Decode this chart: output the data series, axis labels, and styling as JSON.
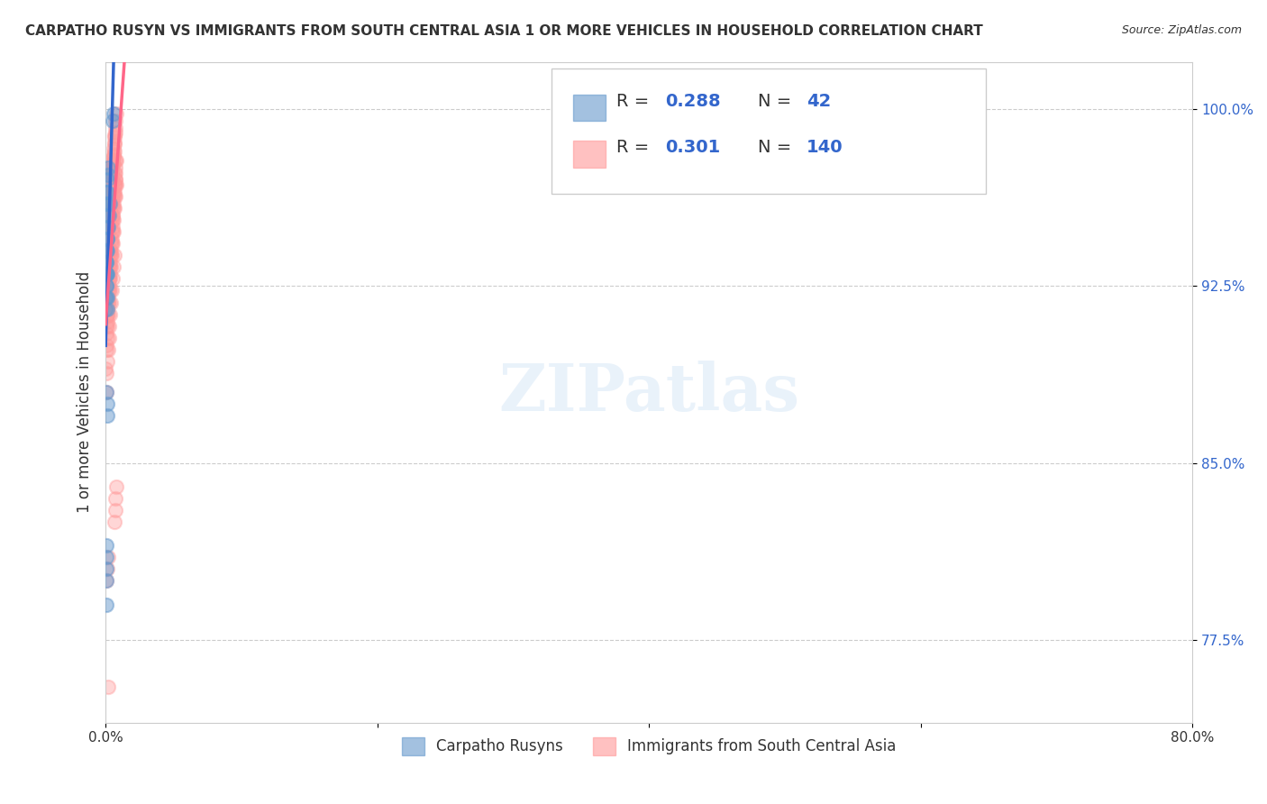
{
  "title": "CARPATHO RUSYN VS IMMIGRANTS FROM SOUTH CENTRAL ASIA 1 OR MORE VEHICLES IN HOUSEHOLD CORRELATION CHART",
  "source": "Source: ZipAtlas.com",
  "xlabel": "",
  "ylabel": "1 or more Vehicles in Household",
  "xlim": [
    0.0,
    80.0
  ],
  "ylim": [
    74.0,
    102.0
  ],
  "xticks": [
    0.0,
    20.0,
    40.0,
    60.0,
    80.0
  ],
  "xticklabels": [
    "0.0%",
    "",
    "",
    "",
    "80.0%"
  ],
  "ytick_values": [
    77.5,
    85.0,
    92.5,
    100.0
  ],
  "ytick_labels": [
    "77.5%",
    "85.0%",
    "92.5%",
    "100.0%"
  ],
  "blue_R": 0.288,
  "blue_N": 42,
  "pink_R": 0.301,
  "pink_N": 140,
  "blue_color": "#6699CC",
  "pink_color": "#FF9999",
  "blue_line_color": "#3366CC",
  "pink_line_color": "#FF6688",
  "legend_label_blue": "Carpatho Rusyns",
  "legend_label_pink": "Immigrants from South Central Asia",
  "blue_scatter_x": [
    0.1,
    0.15,
    0.2,
    0.05,
    0.08,
    0.12,
    0.18,
    0.22,
    0.3,
    0.05,
    0.07,
    0.09,
    0.11,
    0.13,
    0.08,
    0.06,
    0.04,
    0.03,
    0.02,
    0.1,
    0.15,
    0.1,
    0.07,
    0.09,
    0.05,
    0.03,
    0.04,
    0.06,
    0.08,
    0.55,
    0.6,
    0.12,
    0.14,
    0.1,
    0.2,
    0.08,
    0.06,
    0.04,
    0.05,
    0.03,
    0.02,
    0.01
  ],
  "blue_scatter_y": [
    96.5,
    97.0,
    97.5,
    96.0,
    96.5,
    96.0,
    97.2,
    95.5,
    96.0,
    93.5,
    94.0,
    94.5,
    93.0,
    94.0,
    93.5,
    93.0,
    92.5,
    93.0,
    93.5,
    91.5,
    92.0,
    87.0,
    88.0,
    87.5,
    81.0,
    80.5,
    80.0,
    81.5,
    79.0,
    99.5,
    99.8,
    95.0,
    95.5,
    94.5,
    95.0,
    94.0,
    93.0,
    92.5,
    92.0,
    93.0,
    92.0,
    91.5
  ],
  "pink_scatter_x": [
    0.05,
    0.08,
    0.12,
    0.15,
    0.18,
    0.2,
    0.25,
    0.3,
    0.35,
    0.4,
    0.45,
    0.5,
    0.55,
    0.6,
    0.65,
    0.7,
    0.75,
    0.03,
    0.06,
    0.09,
    0.11,
    0.14,
    0.16,
    0.19,
    0.22,
    0.26,
    0.29,
    0.32,
    0.36,
    0.38,
    0.42,
    0.44,
    0.48,
    0.52,
    0.56,
    0.58,
    0.62,
    0.66,
    0.68,
    0.72,
    0.02,
    0.04,
    0.07,
    0.1,
    0.13,
    0.17,
    0.21,
    0.24,
    0.27,
    0.31,
    0.34,
    0.37,
    0.41,
    0.43,
    0.47,
    0.51,
    0.53,
    0.57,
    0.61,
    0.63,
    0.67,
    0.71,
    0.73,
    0.77,
    0.05,
    0.1,
    0.15,
    0.2,
    0.25,
    0.3,
    0.35,
    0.4,
    0.45,
    0.5,
    0.55,
    0.6,
    0.65,
    0.7,
    0.08,
    0.12,
    0.18,
    0.22,
    0.28,
    0.33,
    0.38,
    0.43,
    0.48,
    0.53,
    0.58,
    0.63,
    0.68,
    0.73,
    0.04,
    0.07,
    0.11,
    0.16,
    0.23,
    0.27,
    0.32,
    0.39,
    0.44,
    0.49,
    0.54,
    0.59,
    0.64,
    0.69,
    0.74,
    0.79,
    0.02,
    0.06,
    0.1,
    0.14,
    0.19,
    0.24,
    0.29,
    0.34,
    0.39,
    0.46,
    0.5,
    0.56,
    0.61,
    0.67,
    0.72,
    0.76,
    0.03,
    0.08,
    0.13,
    0.17,
    0.22,
    0.28,
    0.35,
    0.41,
    0.47,
    0.52,
    0.57,
    0.62,
    0.66,
    0.71,
    0.75,
    0.78,
    0.05,
    0.09,
    0.16,
    0.2
  ],
  "pink_scatter_y": [
    93.5,
    94.0,
    93.0,
    94.5,
    95.0,
    94.8,
    95.2,
    95.5,
    94.0,
    95.8,
    96.0,
    96.2,
    95.5,
    96.5,
    96.8,
    97.0,
    97.5,
    93.0,
    92.5,
    93.5,
    94.2,
    94.8,
    95.0,
    95.3,
    95.6,
    95.9,
    96.2,
    96.4,
    96.6,
    96.8,
    97.0,
    97.2,
    97.4,
    97.6,
    97.8,
    98.0,
    98.2,
    98.5,
    98.8,
    99.0,
    92.0,
    92.8,
    93.2,
    93.8,
    94.5,
    95.1,
    95.4,
    95.7,
    96.0,
    96.3,
    96.6,
    96.9,
    97.1,
    97.3,
    97.5,
    97.7,
    97.9,
    98.1,
    98.3,
    98.6,
    98.9,
    99.2,
    99.5,
    99.8,
    90.5,
    91.0,
    91.5,
    92.0,
    92.5,
    93.0,
    93.5,
    94.0,
    94.5,
    95.0,
    95.5,
    96.0,
    96.5,
    97.0,
    91.2,
    91.8,
    92.3,
    92.8,
    93.3,
    93.8,
    94.3,
    94.8,
    95.3,
    95.8,
    96.3,
    96.8,
    97.3,
    97.8,
    90.0,
    90.8,
    91.3,
    91.8,
    92.3,
    92.8,
    93.3,
    93.8,
    94.3,
    94.8,
    95.3,
    95.8,
    96.3,
    96.8,
    97.3,
    97.8,
    89.0,
    89.8,
    90.3,
    90.8,
    91.3,
    91.8,
    92.3,
    92.8,
    93.3,
    93.8,
    94.3,
    94.8,
    95.3,
    95.8,
    96.3,
    96.8,
    88.0,
    88.8,
    89.3,
    89.8,
    90.3,
    90.8,
    91.3,
    91.8,
    92.3,
    92.8,
    93.3,
    93.8,
    82.5,
    83.0,
    83.5,
    84.0,
    80.0,
    80.5,
    81.0,
    75.5
  ],
  "watermark": "ZIPatlas",
  "background_color": "#FFFFFF",
  "grid_color": "#CCCCCC",
  "title_color": "#333333",
  "axis_label_color": "#333333"
}
